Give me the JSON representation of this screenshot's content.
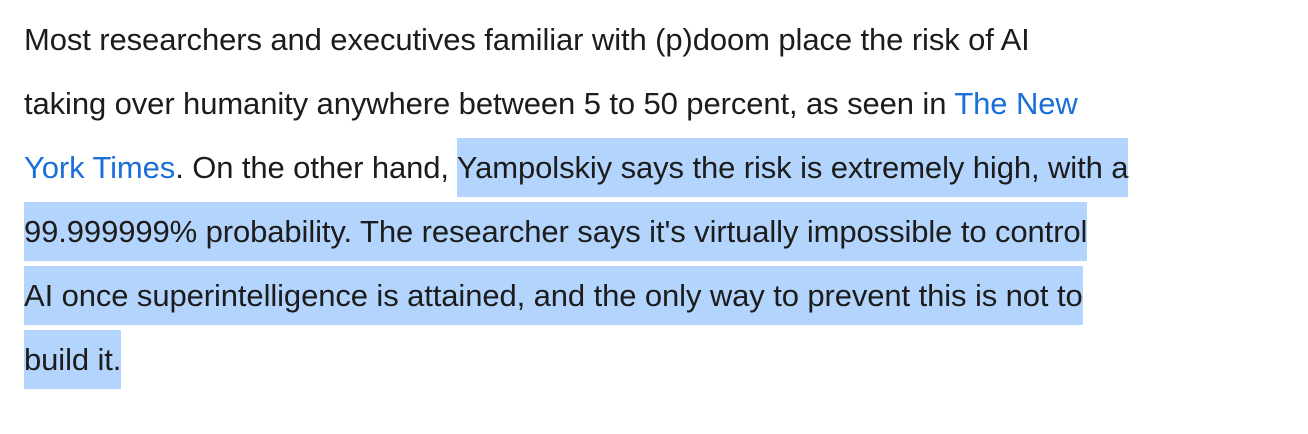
{
  "article": {
    "lines": [
      "Most researchers and executives familiar with (p)doom place the risk of AI",
      "taking over humanity anywhere between 5 to 50 percent, as seen in ",
      "The New",
      "York Times",
      ". On the other hand, ",
      "Yampolskiy says the risk is extremely high, with a",
      "99.999999% probability.  The researcher says it's virtually impossible to control",
      "AI once superintelligence is attained, and the only way to prevent this is not to",
      "build it."
    ],
    "link_text_part1": "The New",
    "link_text_part2": "York Times"
  },
  "colors": {
    "text": "#1c1c1c",
    "link": "#1a6fd8",
    "selection_highlight": "#b3d4fc"
  }
}
